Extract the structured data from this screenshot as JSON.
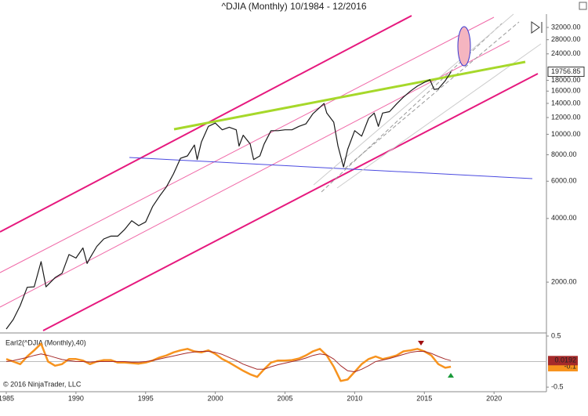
{
  "chart_data": [
    {
      "type": "line",
      "title": "^DJIA (Monthly)  10/1984 - 12/2016",
      "log_y": true,
      "color": "#1a1a1a",
      "x": [
        1985.0,
        1985.5,
        1986.0,
        1986.5,
        1987.0,
        1987.5,
        1987.85,
        1988.5,
        1989.0,
        1989.5,
        1990.0,
        1990.5,
        1990.8,
        1991.0,
        1991.5,
        1992.0,
        1992.5,
        1993.0,
        1993.5,
        1994.0,
        1994.5,
        1995.0,
        1995.5,
        1996.0,
        1996.5,
        1997.0,
        1997.5,
        1998.0,
        1998.5,
        1998.7,
        1999.0,
        1999.5,
        2000.0,
        2000.5,
        2001.0,
        2001.5,
        2001.7,
        2002.0,
        2002.5,
        2002.75,
        2003.2,
        2003.5,
        2004.0,
        2004.5,
        2005.0,
        2005.5,
        2006.0,
        2006.5,
        2007.0,
        2007.5,
        2007.8,
        2008.0,
        2008.5,
        2008.8,
        2009.2,
        2009.5,
        2010.0,
        2010.5,
        2011.0,
        2011.4,
        2011.7,
        2012.0,
        2012.5,
        2013.0,
        2013.5,
        2014.0,
        2014.5,
        2015.0,
        2015.4,
        2015.7,
        2016.0,
        2016.5,
        2016.92
      ],
      "values": [
        1200,
        1330,
        1550,
        1890,
        1900,
        2500,
        1900,
        2100,
        2200,
        2700,
        2600,
        2900,
        2450,
        2600,
        2950,
        3200,
        3300,
        3300,
        3550,
        3900,
        3700,
        3850,
        4550,
        5100,
        5650,
        6500,
        7700,
        7900,
        8900,
        7600,
        9200,
        10900,
        11300,
        10500,
        10800,
        10500,
        8800,
        9900,
        9000,
        7600,
        7900,
        9000,
        10400,
        10400,
        10500,
        10500,
        10900,
        11200,
        12500,
        13400,
        14000,
        12600,
        11400,
        8800,
        7000,
        8500,
        10400,
        9800,
        11900,
        12600,
        10900,
        12600,
        12800,
        13900,
        15000,
        16000,
        16900,
        17600,
        18100,
        16300,
        16400,
        17900,
        19757
      ],
      "last_value": 19756.85,
      "last_label": "19756.85",
      "xlim": [
        1984.55,
        2023.76
      ],
      "ylim": [
        1150,
        37000
      ],
      "yticks": [
        {
          "value": 2000,
          "label": "2000.00"
        },
        {
          "value": 4000,
          "label": "4000.00"
        },
        {
          "value": 6000,
          "label": "6000.00"
        },
        {
          "value": 8000,
          "label": "8000.00"
        },
        {
          "value": 10000,
          "label": "10000.00"
        },
        {
          "value": 12000,
          "label": "12000.00"
        },
        {
          "value": 14000,
          "label": "14000.00"
        },
        {
          "value": 16000,
          "label": "16000.00"
        },
        {
          "value": 18000,
          "label": "18000.00"
        },
        {
          "value": 24000,
          "label": "24000.00"
        },
        {
          "value": 28000,
          "label": "28000.00"
        },
        {
          "value": 32000,
          "label": "32000.00"
        }
      ]
    },
    {
      "type": "line",
      "title": "Earl2(^DJIA (Monthly),40)",
      "annotation": "© 2016 NinjaTrader, LLC",
      "x": [
        1985,
        1985.5,
        1986,
        1986.5,
        1987,
        1987.5,
        1988,
        1988.5,
        1989,
        1989.5,
        1990,
        1990.5,
        1991,
        1991.5,
        1992,
        1992.5,
        1993,
        1993.5,
        1994,
        1994.5,
        1995,
        1995.5,
        1996,
        1996.5,
        1997,
        1997.5,
        1998,
        1998.5,
        1999,
        1999.5,
        2000,
        2000.5,
        2001,
        2001.5,
        2002,
        2002.5,
        2003,
        2003.5,
        2004,
        2004.5,
        2005,
        2005.5,
        2006,
        2006.5,
        2007,
        2007.5,
        2008,
        2008.5,
        2009,
        2009.5,
        2010,
        2010.5,
        2011,
        2011.5,
        2012,
        2012.5,
        2013,
        2013.5,
        2014,
        2014.5,
        2015,
        2015.5,
        2016,
        2016.5,
        2016.9
      ],
      "series": [
        {
          "color": "#f7931e",
          "last_label": "-0.1",
          "values": [
            0.05,
            0,
            -0.05,
            0.1,
            0.22,
            0.35,
            0,
            -0.08,
            -0.05,
            0.05,
            0.05,
            0.02,
            -0.05,
            0,
            0.03,
            0.03,
            -0.02,
            -0.02,
            -0.03,
            -0.04,
            -0.02,
            0.02,
            0.08,
            0.12,
            0.18,
            0.22,
            0.25,
            0.2,
            0.18,
            0.22,
            0.15,
            0.05,
            -0.02,
            -0.1,
            -0.18,
            -0.25,
            -0.3,
            -0.15,
            -0.02,
            0.02,
            0.02,
            0.03,
            0.06,
            0.12,
            0.2,
            0.25,
            0.12,
            -0.1,
            -0.38,
            -0.35,
            -0.2,
            -0.05,
            0.05,
            0.1,
            0.05,
            0.08,
            0.12,
            0.2,
            0.22,
            0.25,
            0.2,
            0.12,
            -0.05,
            -0.12,
            -0.1
          ]
        },
        {
          "color": "#a52a2a",
          "last_label": "0.0192",
          "values": [
            0,
            0.02,
            0.05,
            0.08,
            0.12,
            0.15,
            0.12,
            0.08,
            0.04,
            0.02,
            0,
            0,
            -0.01,
            0,
            0,
            0,
            0,
            0,
            -0.01,
            -0.01,
            0,
            0.02,
            0.05,
            0.08,
            0.11,
            0.14,
            0.17,
            0.19,
            0.2,
            0.2,
            0.18,
            0.14,
            0.08,
            0.02,
            -0.05,
            -0.1,
            -0.15,
            -0.15,
            -0.1,
            -0.06,
            -0.03,
            0,
            0.03,
            0.07,
            0.12,
            0.15,
            0.13,
            0.05,
            -0.08,
            -0.18,
            -0.2,
            -0.15,
            -0.08,
            0,
            0.03,
            0.06,
            0.1,
            0.14,
            0.18,
            0.2,
            0.2,
            0.16,
            0.1,
            0.05,
            0.0192
          ]
        }
      ],
      "xlim": [
        1984.55,
        2023.76
      ],
      "ylim": [
        -0.59,
        0.53
      ],
      "yticks": [
        0.5,
        -0.5
      ],
      "xticks": [
        1985,
        1990,
        1995,
        2000,
        2005,
        2010,
        2015,
        2020
      ]
    }
  ]
}
